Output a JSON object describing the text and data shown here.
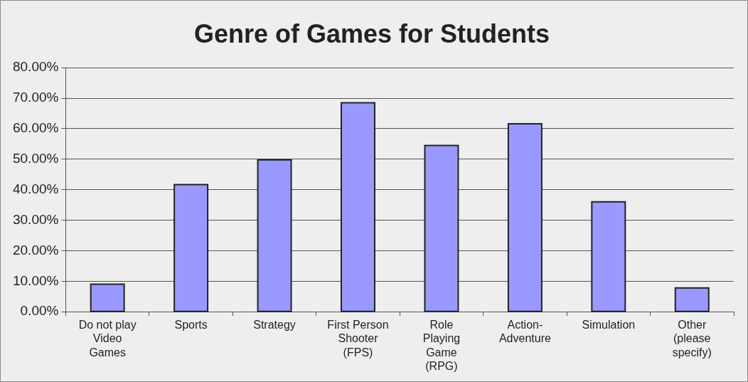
{
  "chart_data": {
    "type": "bar",
    "title": "Genre of Games for Students",
    "categories": [
      "Do not play Video Games",
      "Sports",
      "Strategy",
      "First Person Shooter (FPS)",
      "Role Playing Game (RPG)",
      "Action-Adventure",
      "Simulation",
      "Other (please specify)"
    ],
    "values": [
      9.0,
      41.7,
      49.8,
      68.5,
      54.5,
      61.6,
      36.0,
      7.8
    ],
    "color": "#9999ff",
    "ylim": [
      0,
      80
    ],
    "yticks": [
      {
        "value": 0,
        "label": "0.00%"
      },
      {
        "value": 10,
        "label": "10.00%"
      },
      {
        "value": 20,
        "label": "20.00%"
      },
      {
        "value": 30,
        "label": "30.00%"
      },
      {
        "value": 40,
        "label": "40.00%"
      },
      {
        "value": 50,
        "label": "50.00%"
      },
      {
        "value": 60,
        "label": "60.00%"
      },
      {
        "value": 70,
        "label": "70.00%"
      },
      {
        "value": 80,
        "label": "80.00%"
      }
    ],
    "grid": "y",
    "legend": false
  }
}
